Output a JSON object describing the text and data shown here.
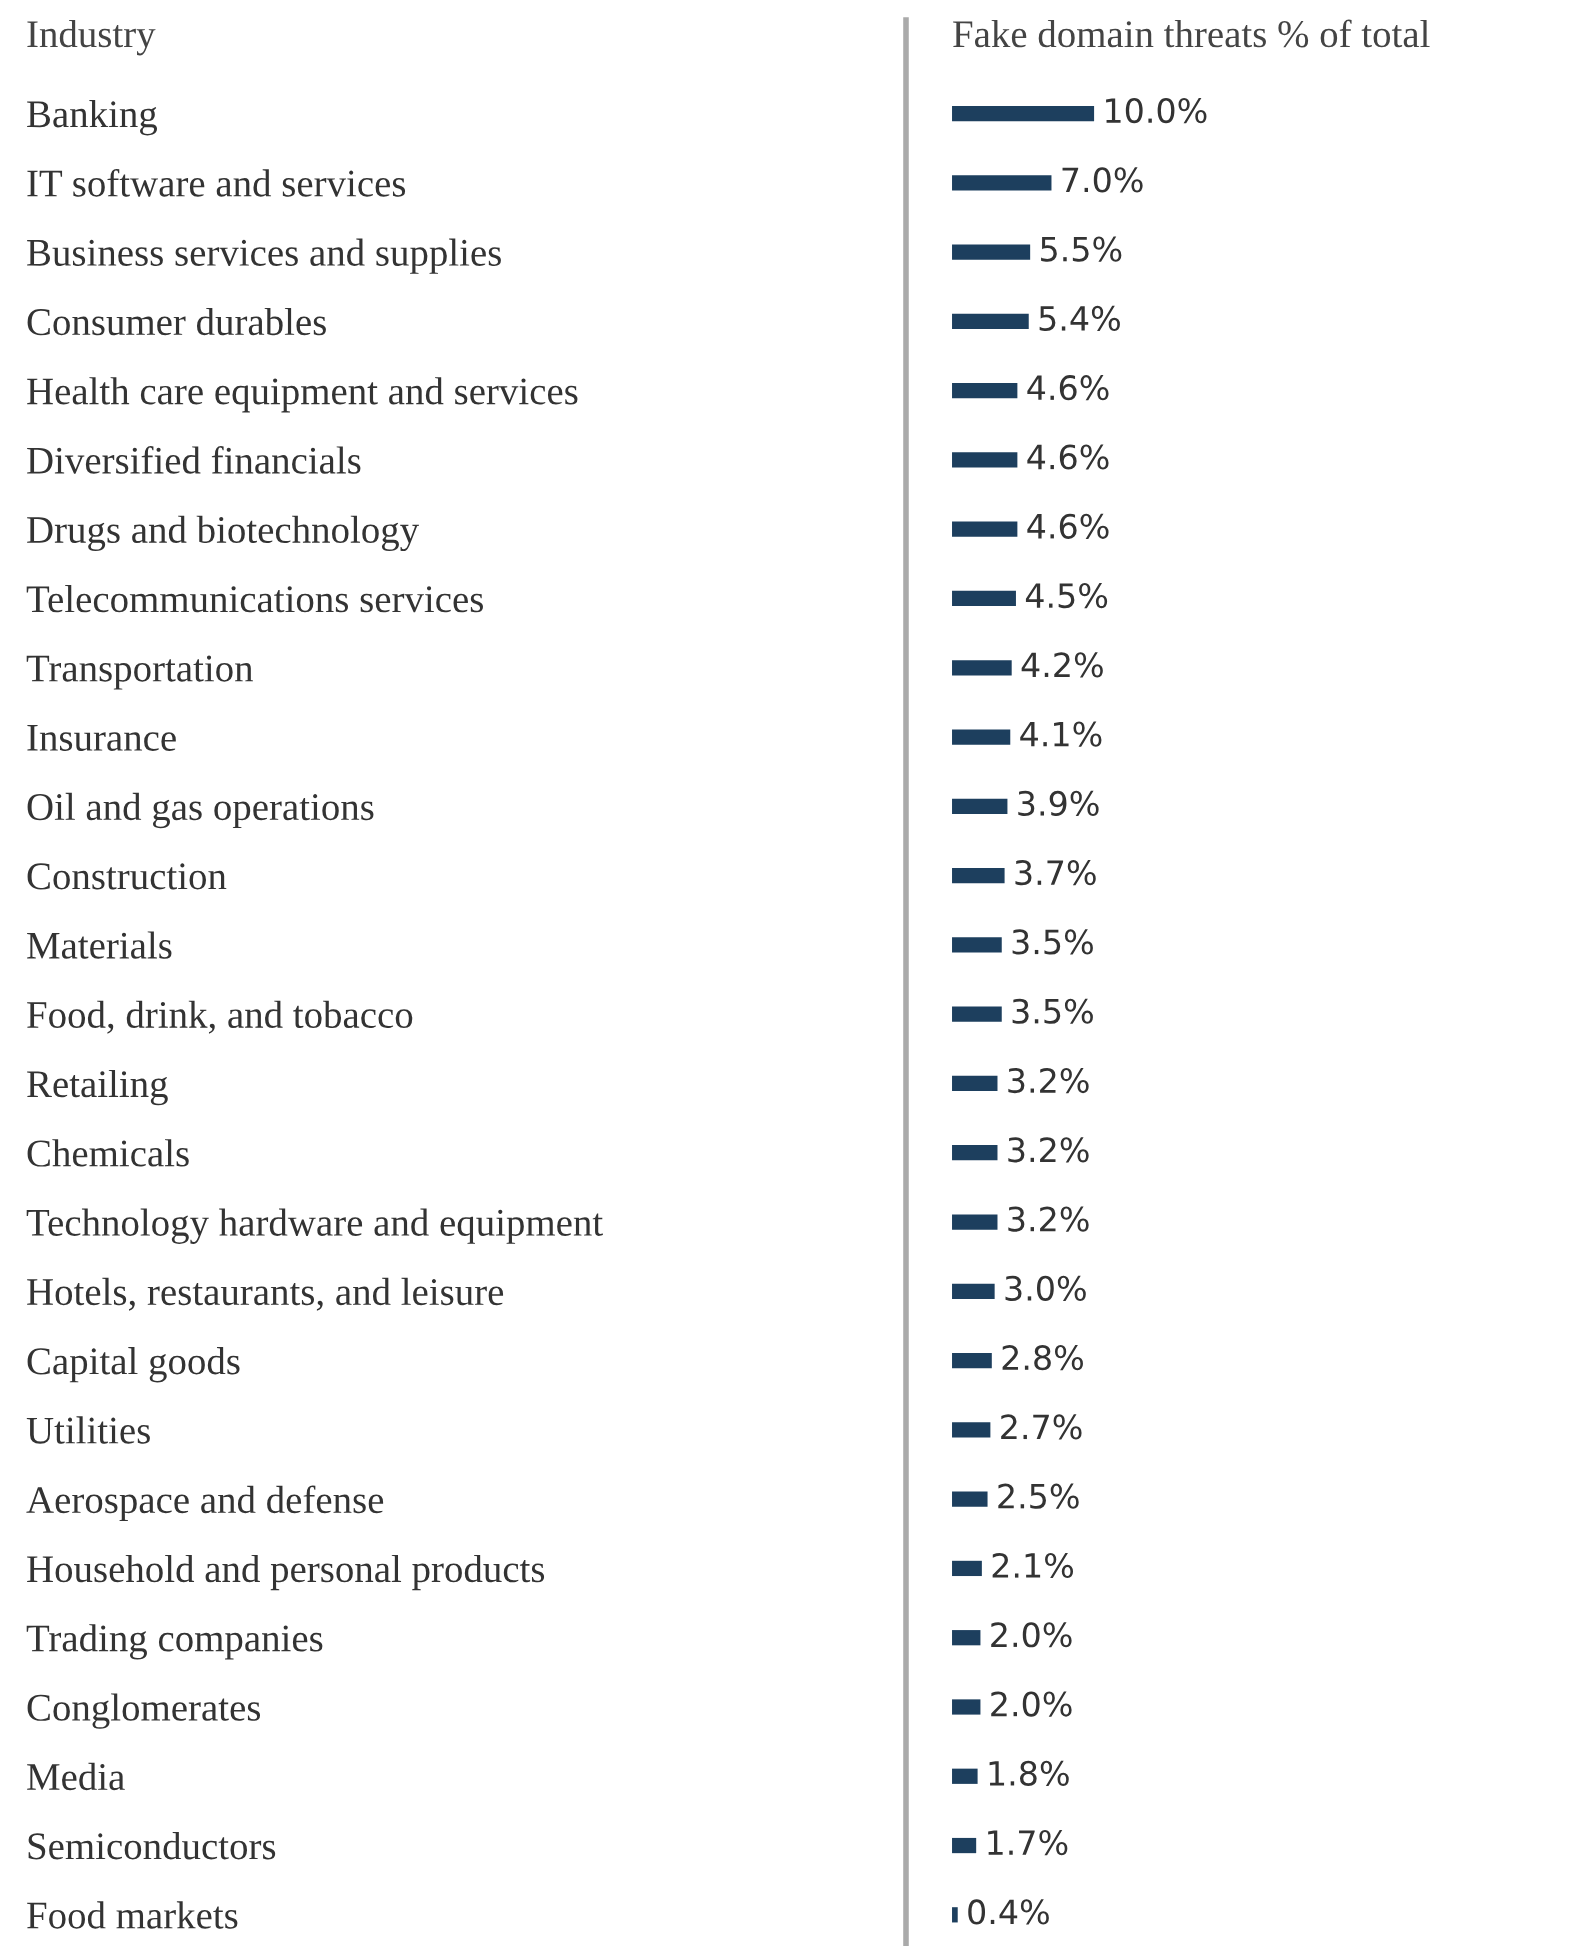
{
  "chart_data": {
    "type": "bar",
    "orientation": "horizontal",
    "title": "Fake domain threats % of total",
    "ylabel": "Industry",
    "categories": [
      "Banking",
      "IT software and services",
      "Business services and supplies",
      "Consumer durables",
      "Health care equipment and services",
      "Diversified financials",
      "Drugs and biotechnology",
      "Telecommunications services",
      "Transportation",
      "Insurance",
      "Oil and gas operations",
      "Construction",
      "Materials",
      "Food, drink, and tobacco",
      "Retailing",
      "Chemicals",
      "Technology hardware and equipment",
      "Hotels, restaurants, and leisure",
      "Capital goods",
      "Utilities",
      "Aerospace and defense",
      "Household and personal products",
      "Trading companies",
      "Conglomerates",
      "Media",
      "Semiconductors",
      "Food markets"
    ],
    "values": [
      10.0,
      7.0,
      5.5,
      5.4,
      4.6,
      4.6,
      4.6,
      4.5,
      4.2,
      4.1,
      3.9,
      3.7,
      3.5,
      3.5,
      3.2,
      3.2,
      3.2,
      3.0,
      2.8,
      2.7,
      2.5,
      2.1,
      2.0,
      2.0,
      1.8,
      1.7,
      0.4
    ],
    "value_labels": [
      "10.0%",
      "7.0%",
      "5.5%",
      "5.4%",
      "4.6%",
      "4.6%",
      "4.6%",
      "4.5%",
      "4.2%",
      "4.1%",
      "3.9%",
      "3.7%",
      "3.5%",
      "3.5%",
      "3.2%",
      "3.2%",
      "3.2%",
      "3.0%",
      "2.8%",
      "2.7%",
      "2.5%",
      "2.1%",
      "2.0%",
      "2.0%",
      "1.8%",
      "1.7%",
      "0.4%"
    ],
    "color": "#1d3f5e",
    "tick_labels": "y",
    "grid": false,
    "legend": false
  }
}
